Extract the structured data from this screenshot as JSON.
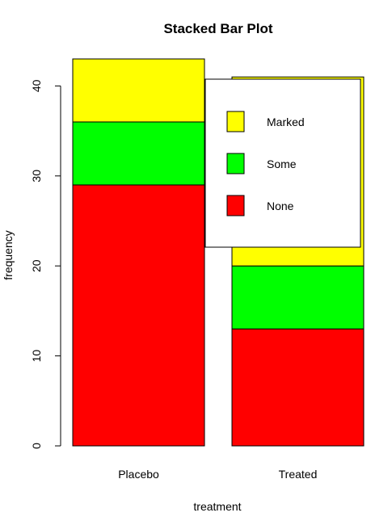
{
  "chart_data": {
    "type": "bar",
    "stacked": true,
    "title": "Stacked Bar Plot",
    "xlabel": "treatment",
    "ylabel": "frequency",
    "categories": [
      "Placebo",
      "Treated"
    ],
    "series": [
      {
        "name": "None",
        "color": "#ff0000",
        "values": [
          29,
          13
        ]
      },
      {
        "name": "Some",
        "color": "#00ff00",
        "values": [
          7,
          7
        ]
      },
      {
        "name": "Marked",
        "color": "#ffff00",
        "values": [
          7,
          21
        ]
      }
    ],
    "ylim": [
      0,
      43
    ],
    "yticks": [
      0,
      10,
      20,
      30,
      40
    ],
    "legend": {
      "position": "top-right",
      "order": [
        "Marked",
        "Some",
        "None"
      ]
    },
    "grid": false
  }
}
